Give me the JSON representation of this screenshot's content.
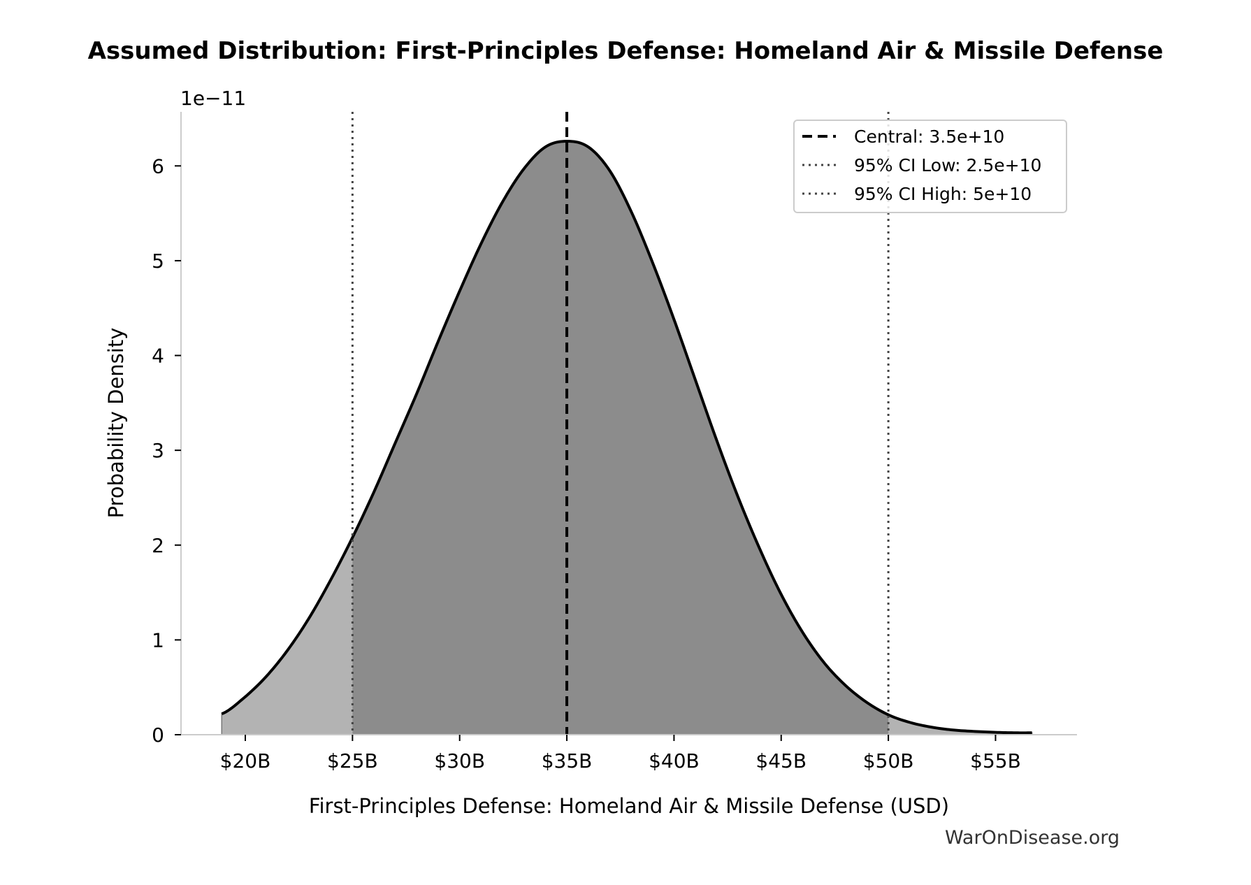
{
  "chart_data": {
    "type": "area",
    "title": "Assumed Distribution: First-Principles Defense: Homeland Air & Missile Defense",
    "xlabel": "First-Principles Defense: Homeland Air & Missile Defense (USD)",
    "ylabel": "Probability Density",
    "y_offset_label": "1e−11",
    "y_scale": 1e-11,
    "xlim": [
      17.0,
      58.8
    ],
    "ylim": [
      0,
      6.57
    ],
    "x_unit": "billion USD",
    "x_ticks": [
      {
        "value": 20,
        "label": "$20B"
      },
      {
        "value": 25,
        "label": "$25B"
      },
      {
        "value": 30,
        "label": "$30B"
      },
      {
        "value": 35,
        "label": "$35B"
      },
      {
        "value": 40,
        "label": "$40B"
      },
      {
        "value": 45,
        "label": "$45B"
      },
      {
        "value": 50,
        "label": "$50B"
      },
      {
        "value": 55,
        "label": "$55B"
      }
    ],
    "y_ticks": [
      {
        "value": 0,
        "label": "0"
      },
      {
        "value": 1,
        "label": "1"
      },
      {
        "value": 2,
        "label": "2"
      },
      {
        "value": 3,
        "label": "3"
      },
      {
        "value": 4,
        "label": "4"
      },
      {
        "value": 5,
        "label": "5"
      },
      {
        "value": 6,
        "label": "6"
      }
    ],
    "series": [
      {
        "name": "density",
        "x": [
          18.9,
          20,
          21,
          22,
          23,
          24,
          25,
          26,
          27,
          28,
          29,
          30,
          31,
          32,
          33,
          34,
          35,
          36,
          37,
          38,
          39,
          40,
          41,
          42,
          43,
          44,
          45,
          46,
          47,
          48,
          49,
          50,
          51,
          52,
          53,
          54,
          55,
          56,
          56.7
        ],
        "y": [
          0.22,
          0.4,
          0.62,
          0.9,
          1.24,
          1.64,
          2.08,
          2.56,
          3.08,
          3.6,
          4.15,
          4.68,
          5.18,
          5.62,
          5.97,
          6.2,
          6.26,
          6.2,
          5.95,
          5.52,
          4.98,
          4.38,
          3.74,
          3.1,
          2.5,
          1.96,
          1.48,
          1.08,
          0.76,
          0.52,
          0.34,
          0.21,
          0.13,
          0.08,
          0.05,
          0.035,
          0.025,
          0.02,
          0.02
        ]
      }
    ],
    "shaded_interval": [
      25,
      50
    ],
    "reference_lines": [
      {
        "key": "central",
        "value": 35,
        "style": "dashed",
        "label": "Central: 3.5e+10"
      },
      {
        "key": "ci_low",
        "value": 25,
        "style": "dotted",
        "label": "95% CI Low: 2.5e+10"
      },
      {
        "key": "ci_high",
        "value": 50,
        "style": "dotted",
        "label": "95% CI High: 5e+10"
      }
    ],
    "legend_position": "top-right",
    "grid": false,
    "colors": {
      "ci_fill": "#8c8c8c",
      "tail_fill": "#b3b3b3",
      "curve": "#000000",
      "ci_line": "#444444"
    }
  },
  "watermark": "WarOnDisease.org"
}
